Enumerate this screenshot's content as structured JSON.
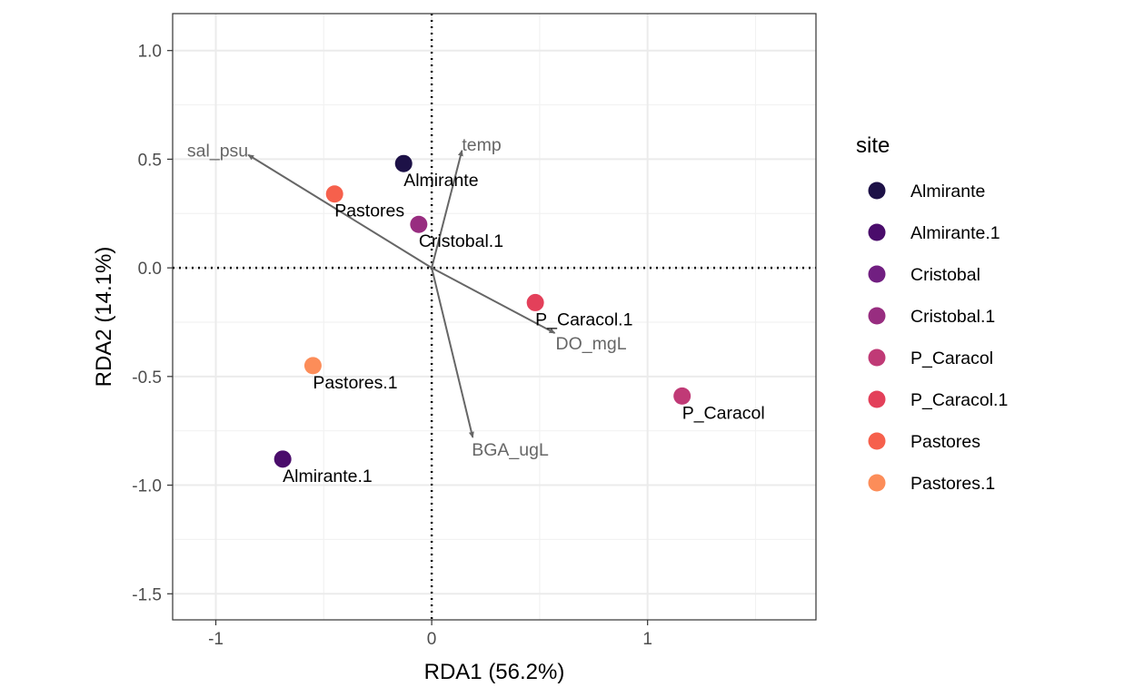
{
  "chart_data": {
    "type": "scatter",
    "xlabel": "RDA1 (56.2%)",
    "ylabel": "RDA2 (14.1%)",
    "xlim": [
      -1.2,
      1.78
    ],
    "ylim": [
      -1.62,
      1.17
    ],
    "x_ticks": [
      -1,
      0,
      1
    ],
    "x_tick_labels": [
      "-1",
      "0",
      "1"
    ],
    "y_ticks": [
      1.0,
      0.5,
      0.0,
      -0.5,
      -1.0,
      -1.5
    ],
    "y_tick_labels": [
      "1.0",
      "0.5",
      "0.0",
      "-0.5",
      "-1.0",
      "-1.5"
    ],
    "grid": true,
    "reference_lines": {
      "x": 0,
      "y": 0,
      "style": "dotted"
    },
    "legend": {
      "title": "site",
      "position": "right",
      "entries": [
        "Almirante",
        "Almirante.1",
        "Cristobal",
        "Cristobal.1",
        "P_Caracol",
        "P_Caracol.1",
        "Pastores",
        "Pastores.1"
      ],
      "colors": [
        "#1d1147",
        "#4a0c6b",
        "#711f81",
        "#982d80",
        "#c03a76",
        "#e3405a",
        "#f6604c",
        "#fc8d59"
      ]
    },
    "points": [
      {
        "label": "Almirante",
        "x": -0.13,
        "y": 0.48,
        "color": "#1d1147"
      },
      {
        "label": "Almirante.1",
        "x": -0.69,
        "y": -0.88,
        "color": "#4a0c6b"
      },
      {
        "label": "Cristobal.1",
        "x": -0.06,
        "y": 0.2,
        "color": "#982d80"
      },
      {
        "label": "P_Caracol",
        "x": 1.16,
        "y": -0.59,
        "color": "#c03a76"
      },
      {
        "label": "P_Caracol.1",
        "x": 0.48,
        "y": -0.16,
        "color": "#e3405a"
      },
      {
        "label": "Pastores",
        "x": -0.45,
        "y": 0.34,
        "color": "#f6604c"
      },
      {
        "label": "Pastores.1",
        "x": -0.55,
        "y": -0.45,
        "color": "#fc8d59"
      }
    ],
    "vectors": [
      {
        "label": "sal_psu",
        "x": -0.85,
        "y": 0.52
      },
      {
        "label": "temp",
        "x": 0.14,
        "y": 0.54
      },
      {
        "label": "DO_mgL",
        "x": 0.57,
        "y": -0.3
      },
      {
        "label": "BGA_ugL",
        "x": 0.19,
        "y": -0.78
      }
    ]
  }
}
